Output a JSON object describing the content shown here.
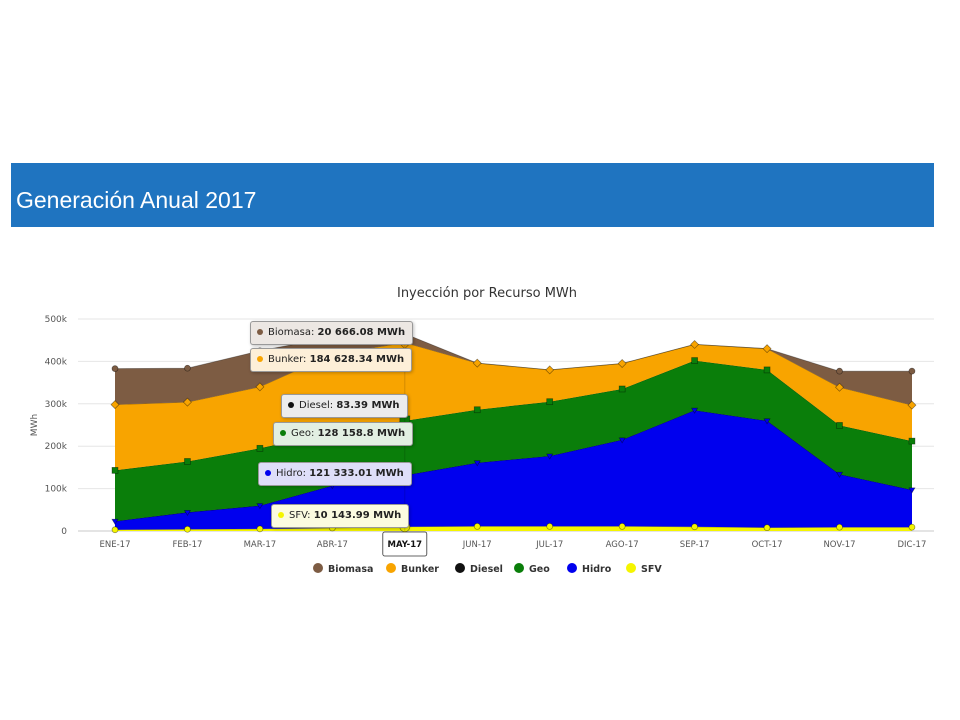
{
  "header": {
    "title": "Generación Anual 2017"
  },
  "chart_data": {
    "type": "area",
    "stacked": true,
    "title": "Inyección por Recurso MWh",
    "ylabel": "MWh",
    "xlabel": "",
    "ylim": [
      0,
      500000
    ],
    "y_ticks": [
      "0",
      "100k",
      "200k",
      "300k",
      "400k",
      "500k"
    ],
    "y_tick_values": [
      0,
      100000,
      200000,
      300000,
      400000,
      500000
    ],
    "categories": [
      "ENE-17",
      "FEB-17",
      "MAR-17",
      "ABR-17",
      "MAY-17",
      "JUN-17",
      "JUL-17",
      "AGO-17",
      "SEP-17",
      "OCT-17",
      "NOV-17",
      "DIC-17"
    ],
    "highlighted_category": "MAY-17",
    "grid": true,
    "legend_position": "bottom",
    "series": [
      {
        "name": "SFV",
        "color": "#f5f500",
        "marker": "circle",
        "values": [
          3000,
          4000,
          5000,
          7000,
          10143.99,
          11000,
          11000,
          11000,
          10000,
          8000,
          9000,
          9000
        ]
      },
      {
        "name": "Hidro",
        "color": "#0000ee",
        "marker": "triangle-down",
        "values": [
          20000,
          40000,
          55000,
          100000,
          121333.01,
          150000,
          166000,
          204000,
          275000,
          252000,
          125000,
          88000
        ]
      },
      {
        "name": "Diesel",
        "color": "#111111",
        "marker": "triangle",
        "values": [
          0,
          0,
          0,
          0,
          83.39,
          0,
          0,
          0,
          0,
          0,
          0,
          0
        ]
      },
      {
        "name": "Geo",
        "color": "#0a7e0a",
        "marker": "square",
        "values": [
          120000,
          120000,
          135000,
          125000,
          128158.8,
          125000,
          128000,
          120000,
          117000,
          120000,
          115000,
          115000
        ]
      },
      {
        "name": "Bunker",
        "color": "#f8a400",
        "marker": "diamond",
        "values": [
          155000,
          140000,
          145000,
          185000,
          184628.34,
          110000,
          75000,
          60000,
          38000,
          50000,
          90000,
          85000
        ]
      },
      {
        "name": "Biomasa",
        "color": "#7d5c43",
        "marker": "circle",
        "values": [
          85000,
          80000,
          85000,
          40000,
          20666.08,
          0,
          0,
          0,
          0,
          0,
          38000,
          80000
        ]
      }
    ],
    "legend": [
      "Biomasa",
      "Bunker",
      "Diesel",
      "Geo",
      "Hidro",
      "SFV"
    ],
    "tooltips": [
      {
        "series": "Biomasa",
        "label": "Biomasa:",
        "value": "20 666.08 MWh"
      },
      {
        "series": "Bunker",
        "label": "Bunker:",
        "value": "184 628.34 MWh"
      },
      {
        "series": "Diesel",
        "label": "Diesel:",
        "value": "83.39 MWh"
      },
      {
        "series": "Geo",
        "label": "Geo:",
        "value": "128 158.8 MWh"
      },
      {
        "series": "Hidro",
        "label": "Hidro:",
        "value": "121 333.01 MWh"
      },
      {
        "series": "SFV",
        "label": "SFV:",
        "value": "10 143.99 MWh"
      }
    ]
  }
}
